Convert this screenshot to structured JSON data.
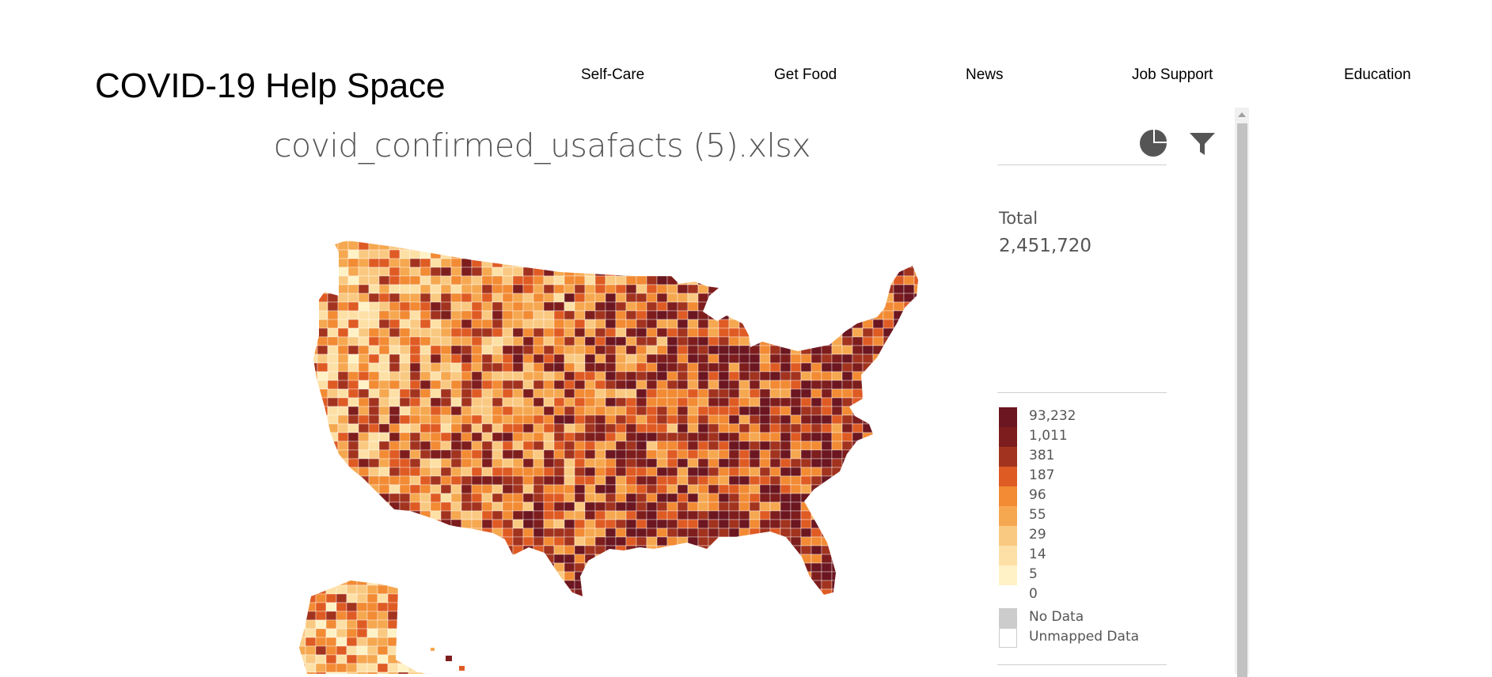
{
  "site": {
    "title": "COVID-19 Help Space"
  },
  "nav": {
    "items": [
      {
        "label": "Self-Care"
      },
      {
        "label": "Get Food"
      },
      {
        "label": "News"
      },
      {
        "label": "Job Support"
      },
      {
        "label": "Education"
      }
    ]
  },
  "visualization": {
    "title": "covid_confirmed_usafacts (5).xlsx",
    "icons": [
      "pie-chart-icon",
      "filter-icon"
    ],
    "total_label": "Total",
    "total_value": "2,451,720",
    "legend": [
      {
        "label": "93,232",
        "color": "#6b1620"
      },
      {
        "label": "1,011",
        "color": "#7e1d1d"
      },
      {
        "label": "381",
        "color": "#a2331f"
      },
      {
        "label": "187",
        "color": "#df5b24"
      },
      {
        "label": "96",
        "color": "#f28b34"
      },
      {
        "label": "55",
        "color": "#f6a850"
      },
      {
        "label": "29",
        "color": "#fac981"
      },
      {
        "label": "14",
        "color": "#fde0a6"
      },
      {
        "label": "5",
        "color": "#fff2c6"
      },
      {
        "label": "0",
        "color": "#ffffff"
      }
    ],
    "no_data": {
      "label": "No Data",
      "color": "#cccccc"
    },
    "unmapped": {
      "label": "Unmapped Data",
      "color": "#ffffff"
    }
  }
}
